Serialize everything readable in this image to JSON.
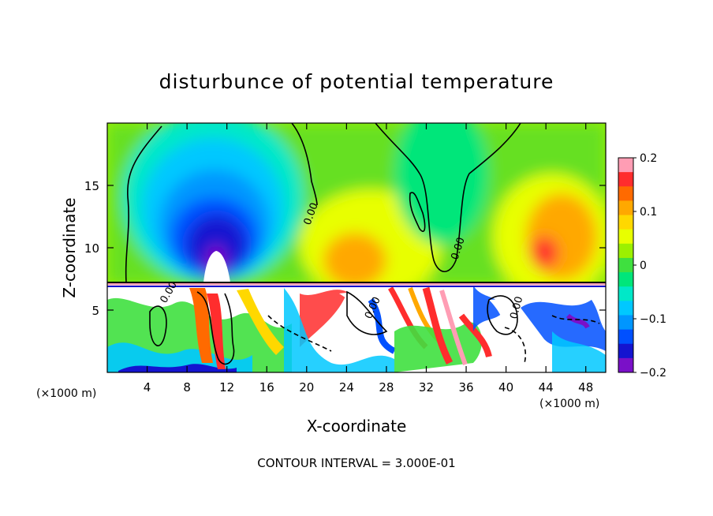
{
  "chart_data": {
    "type": "heatmap",
    "title": "disturbunce of potential temperature",
    "xlabel": "X-coordinate",
    "ylabel": "Z-coordinate",
    "x_unit": "(×1000 m)",
    "z_unit": "(×1000 m)",
    "xlim": [
      0,
      50
    ],
    "ylim": [
      0,
      20
    ],
    "x_ticks": [
      4,
      8,
      12,
      16,
      20,
      24,
      28,
      32,
      36,
      40,
      44,
      48
    ],
    "y_ticks": [
      5,
      10,
      15
    ],
    "colorbar": {
      "range": [
        -0.2,
        0.2
      ],
      "tick_values": [
        0.2,
        0.1,
        0,
        -0.1,
        -0.2
      ],
      "tick_labels": [
        "0.2",
        "0.1",
        "0",
        "−0.1",
        "−0.2"
      ],
      "colors": [
        "#ff9db4",
        "#ff2d2d",
        "#ff6a00",
        "#ffa800",
        "#ffd800",
        "#e8ff00",
        "#9cf000",
        "#3fe03f",
        "#00e67a",
        "#00e8c8",
        "#00c8ff",
        "#0096ff",
        "#0050ff",
        "#1414d0",
        "#7a10c8"
      ]
    },
    "contour_labels": [
      "0.00",
      "0.00",
      "0.00",
      "0.00",
      "0.00"
    ],
    "footer": "CONTOUR INTERVAL = 3.000E-01"
  }
}
